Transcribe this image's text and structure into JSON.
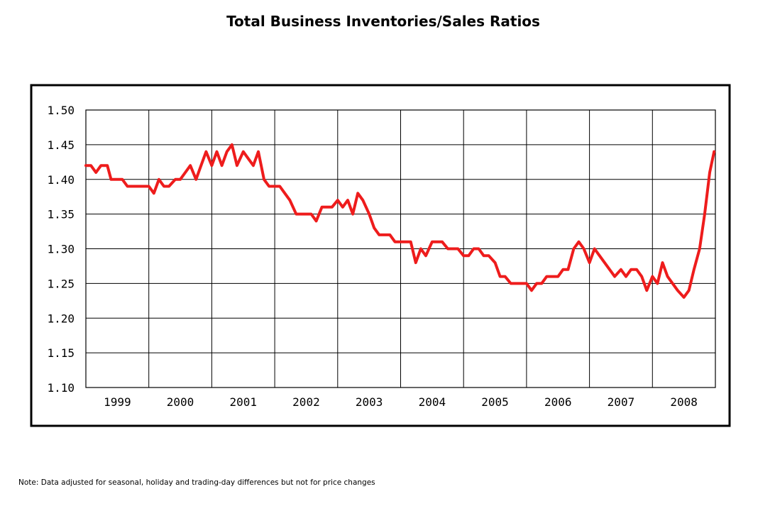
{
  "chart_data": {
    "type": "line",
    "title": "Total Business Inventories/Sales Ratios",
    "xlabel": "",
    "ylabel": "",
    "ylim": [
      1.1,
      1.5
    ],
    "y_ticks": [
      "1.50",
      "1.45",
      "1.40",
      "1.35",
      "1.30",
      "1.25",
      "1.20",
      "1.15",
      "1.10"
    ],
    "x_ticks": [
      "1999",
      "2000",
      "2001",
      "2002",
      "2003",
      "2004",
      "2005",
      "2006",
      "2007",
      "2008"
    ],
    "grid": true,
    "legend": "none",
    "line_color": "#ee1c1c",
    "series": [
      {
        "values": [
          [
            1998.5,
            1.42
          ],
          [
            1998.58,
            1.42
          ],
          [
            1998.66,
            1.41
          ],
          [
            1998.74,
            1.42
          ],
          [
            1998.84,
            1.42
          ],
          [
            1998.9,
            1.4
          ],
          [
            1999.0,
            1.4
          ],
          [
            1999.08,
            1.4
          ],
          [
            1999.16,
            1.39
          ],
          [
            1999.25,
            1.39
          ],
          [
            1999.33,
            1.39
          ],
          [
            1999.41,
            1.39
          ],
          [
            1999.5,
            1.39
          ],
          [
            1999.58,
            1.38
          ],
          [
            1999.66,
            1.4
          ],
          [
            1999.74,
            1.39
          ],
          [
            1999.82,
            1.39
          ],
          [
            1999.92,
            1.4
          ],
          [
            2000.0,
            1.4
          ],
          [
            2000.08,
            1.41
          ],
          [
            2000.16,
            1.42
          ],
          [
            2000.25,
            1.4
          ],
          [
            2000.33,
            1.42
          ],
          [
            2000.41,
            1.44
          ],
          [
            2000.5,
            1.42
          ],
          [
            2000.58,
            1.44
          ],
          [
            2000.66,
            1.42
          ],
          [
            2000.74,
            1.44
          ],
          [
            2000.82,
            1.45
          ],
          [
            2000.9,
            1.42
          ],
          [
            2001.0,
            1.44
          ],
          [
            2001.08,
            1.43
          ],
          [
            2001.16,
            1.42
          ],
          [
            2001.24,
            1.44
          ],
          [
            2001.33,
            1.4
          ],
          [
            2001.41,
            1.39
          ],
          [
            2001.5,
            1.39
          ],
          [
            2001.58,
            1.39
          ],
          [
            2001.66,
            1.38
          ],
          [
            2001.74,
            1.37
          ],
          [
            2001.84,
            1.35
          ],
          [
            2001.92,
            1.35
          ],
          [
            2002.0,
            1.35
          ],
          [
            2002.08,
            1.35
          ],
          [
            2002.16,
            1.34
          ],
          [
            2002.25,
            1.36
          ],
          [
            2002.33,
            1.36
          ],
          [
            2002.41,
            1.36
          ],
          [
            2002.5,
            1.37
          ],
          [
            2002.58,
            1.36
          ],
          [
            2002.66,
            1.37
          ],
          [
            2002.74,
            1.35
          ],
          [
            2002.82,
            1.38
          ],
          [
            2002.9,
            1.37
          ],
          [
            2003.0,
            1.35
          ],
          [
            2003.08,
            1.33
          ],
          [
            2003.16,
            1.32
          ],
          [
            2003.25,
            1.32
          ],
          [
            2003.33,
            1.32
          ],
          [
            2003.41,
            1.31
          ],
          [
            2003.5,
            1.31
          ],
          [
            2003.58,
            1.31
          ],
          [
            2003.66,
            1.31
          ],
          [
            2003.74,
            1.28
          ],
          [
            2003.82,
            1.3
          ],
          [
            2003.9,
            1.29
          ],
          [
            2004.0,
            1.31
          ],
          [
            2004.08,
            1.31
          ],
          [
            2004.16,
            1.31
          ],
          [
            2004.25,
            1.3
          ],
          [
            2004.33,
            1.3
          ],
          [
            2004.41,
            1.3
          ],
          [
            2004.5,
            1.29
          ],
          [
            2004.58,
            1.29
          ],
          [
            2004.66,
            1.3
          ],
          [
            2004.74,
            1.3
          ],
          [
            2004.82,
            1.29
          ],
          [
            2004.9,
            1.29
          ],
          [
            2005.0,
            1.28
          ],
          [
            2005.08,
            1.26
          ],
          [
            2005.16,
            1.26
          ],
          [
            2005.25,
            1.25
          ],
          [
            2005.33,
            1.25
          ],
          [
            2005.41,
            1.25
          ],
          [
            2005.5,
            1.25
          ],
          [
            2005.58,
            1.24
          ],
          [
            2005.66,
            1.25
          ],
          [
            2005.74,
            1.25
          ],
          [
            2005.82,
            1.26
          ],
          [
            2005.9,
            1.26
          ],
          [
            2006.0,
            1.26
          ],
          [
            2006.08,
            1.27
          ],
          [
            2006.16,
            1.27
          ],
          [
            2006.25,
            1.3
          ],
          [
            2006.33,
            1.31
          ],
          [
            2006.41,
            1.3
          ],
          [
            2006.5,
            1.28
          ],
          [
            2006.58,
            1.3
          ],
          [
            2006.66,
            1.29
          ],
          [
            2006.74,
            1.28
          ],
          [
            2006.82,
            1.27
          ],
          [
            2006.9,
            1.26
          ],
          [
            2007.0,
            1.27
          ],
          [
            2007.08,
            1.26
          ],
          [
            2007.16,
            1.27
          ],
          [
            2007.25,
            1.27
          ],
          [
            2007.33,
            1.26
          ],
          [
            2007.41,
            1.24
          ],
          [
            2007.5,
            1.26
          ],
          [
            2007.58,
            1.25
          ],
          [
            2007.66,
            1.28
          ],
          [
            2007.74,
            1.26
          ],
          [
            2007.82,
            1.25
          ],
          [
            2007.9,
            1.24
          ],
          [
            2008.0,
            1.23
          ],
          [
            2008.08,
            1.24
          ],
          [
            2008.16,
            1.27
          ],
          [
            2008.25,
            1.3
          ],
          [
            2008.33,
            1.35
          ],
          [
            2008.41,
            1.41
          ],
          [
            2008.48,
            1.44
          ]
        ]
      }
    ]
  },
  "footnote": "Note: Data adjusted for seasonal, holiday and trading-day differences but not for price changes"
}
